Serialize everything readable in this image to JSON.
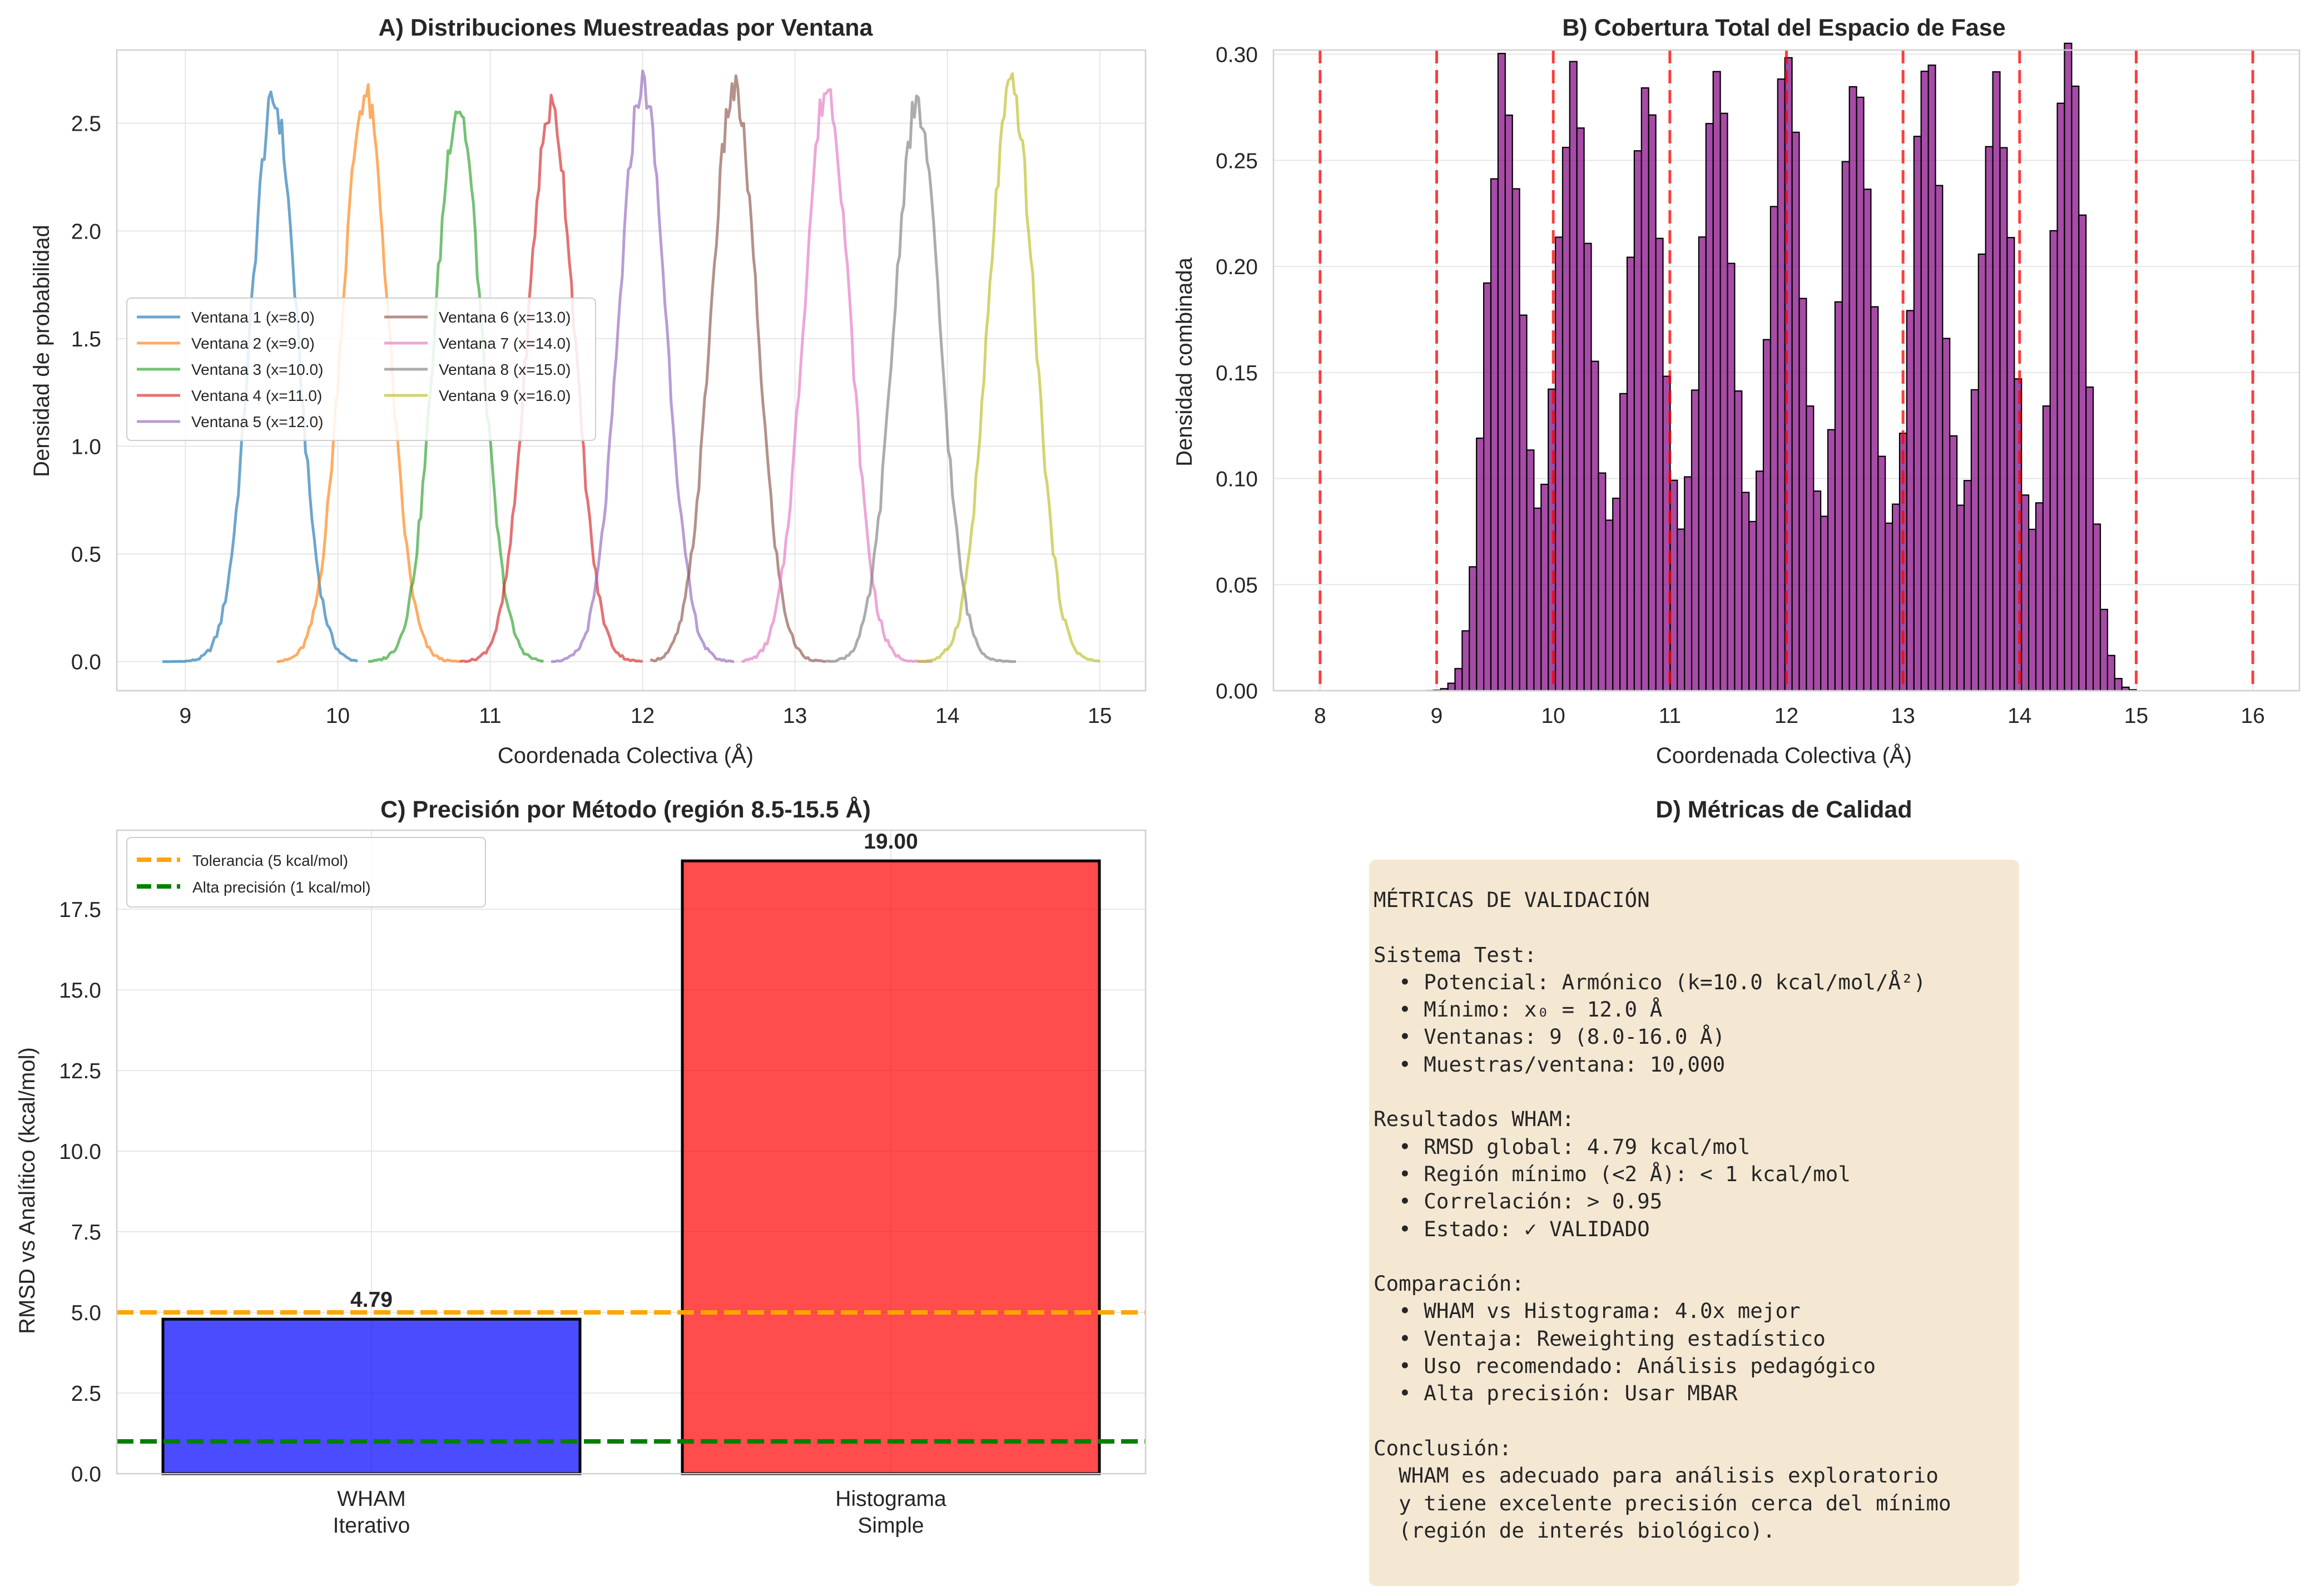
{
  "figure": {
    "panel_a": {
      "title": "A) Distribuciones Muestreadas por Ventana",
      "xlabel": "Coordenada Colectiva (Å)",
      "ylabel": "Densidad de probabilidad"
    },
    "panel_b": {
      "title": "B) Cobertura Total del Espacio de Fase",
      "xlabel": "Coordenada Colectiva (Å)",
      "ylabel": "Densidad combinada"
    },
    "panel_c": {
      "title": "C) Precisión por Método (región 8.5-15.5 Å)",
      "xlabel": "",
      "ylabel": "RMSD vs Analítico (kcal/mol)"
    },
    "panel_d": {
      "title": "D) Métricas de Calidad",
      "text": "MÉTRICAS DE VALIDACIÓN\n\nSistema Test:\n  • Potencial: Armónico (k=10.0 kcal/mol/Å²)\n  • Mínimo: x₀ = 12.0 Å\n  • Ventanas: 9 (8.0-16.0 Å)\n  • Muestras/ventana: 10,000\n\nResultados WHAM:\n  • RMSD global: 4.79 kcal/mol\n  • Región mínimo (<2 Å): < 1 kcal/mol\n  • Correlación: > 0.95\n  • Estado: ✓ VALIDADO\n\nComparación:\n  • WHAM vs Histograma: 4.0x mejor\n  • Ventaja: Reweighting estadístico\n  • Uso recomendado: Análisis pedagógico\n  • Alta precisión: Usar MBAR\n\nConclusión:\n  WHAM es adecuado para análisis exploratorio\n  y tiene excelente precisión cerca del mínimo\n  (región de interés biológico).",
      "box_color": "#f5e8d3"
    }
  },
  "chart_data": [
    {
      "type": "line",
      "title": "A) Distribuciones Muestreadas por Ventana",
      "xlabel": "Coordenada Colectiva (Å)",
      "ylabel": "Densidad de probabilidad",
      "xlim": [
        8.55,
        15.3
      ],
      "ylim": [
        -0.135,
        2.84
      ],
      "xticks": [
        9,
        10,
        11,
        12,
        13,
        14,
        15
      ],
      "yticks": [
        0.0,
        0.5,
        1.0,
        1.5,
        2.0,
        2.5
      ],
      "grid": true,
      "legend_position": "center-left",
      "legend_columns": 2,
      "series": [
        {
          "name": "Ventana 1 (x=8.0)",
          "color": "#1f77b4",
          "center": 9.58,
          "sigma": 0.152,
          "peak": 2.6,
          "xmin": 8.85,
          "xmax": 10.13
        },
        {
          "name": "Ventana 2 (x=9.0)",
          "color": "#ff7f0e",
          "center": 10.18,
          "sigma": 0.152,
          "peak": 2.63,
          "xmin": 9.6,
          "xmax": 10.8
        },
        {
          "name": "Ventana 3 (x=10.0)",
          "color": "#2ca02c",
          "center": 10.79,
          "sigma": 0.152,
          "peak": 2.58,
          "xmin": 10.2,
          "xmax": 11.35
        },
        {
          "name": "Ventana 4 (x=11.0)",
          "color": "#d62728",
          "center": 11.4,
          "sigma": 0.152,
          "peak": 2.57,
          "xmin": 10.8,
          "xmax": 12.0
        },
        {
          "name": "Ventana 5 (x=12.0)",
          "color": "#9467bd",
          "center": 12.0,
          "sigma": 0.152,
          "peak": 2.68,
          "xmin": 11.4,
          "xmax": 12.6
        },
        {
          "name": "Ventana 6 (x=13.0)",
          "color": "#8c564b",
          "center": 12.6,
          "sigma": 0.152,
          "peak": 2.65,
          "xmin": 12.05,
          "xmax": 13.2
        },
        {
          "name": "Ventana 7 (x=14.0)",
          "color": "#e377c2",
          "center": 13.21,
          "sigma": 0.152,
          "peak": 2.66,
          "xmin": 12.65,
          "xmax": 13.9
        },
        {
          "name": "Ventana 8 (x=15.0)",
          "color": "#7f7f7f",
          "center": 13.8,
          "sigma": 0.152,
          "peak": 2.57,
          "xmin": 13.2,
          "xmax": 14.45
        },
        {
          "name": "Ventana 9 (x=16.0)",
          "color": "#bcbd22",
          "center": 14.42,
          "sigma": 0.152,
          "peak": 2.66,
          "xmin": 13.8,
          "xmax": 15.0
        }
      ]
    },
    {
      "type": "bar",
      "title": "B) Cobertura Total del Espacio de Fase",
      "xlabel": "Coordenada Colectiva (Å)",
      "ylabel": "Densidad combinada",
      "xlim": [
        7.6,
        16.4
      ],
      "ylim": [
        0.0,
        0.302
      ],
      "xticks": [
        8,
        9,
        10,
        11,
        12,
        13,
        14,
        15,
        16
      ],
      "yticks": [
        0.0,
        0.05,
        0.1,
        0.15,
        0.2,
        0.25,
        0.3
      ],
      "grid": true,
      "bar_color": "#800080",
      "edge_color": "#000000",
      "bin_range": [
        8.85,
        15.0
      ],
      "bin_count": 100,
      "mixture": {
        "centers": [
          9.58,
          10.18,
          10.79,
          11.4,
          12.0,
          12.6,
          13.21,
          13.8,
          14.42
        ],
        "sigma": 0.152
      },
      "reference_lines": {
        "x": [
          8,
          9,
          10,
          11,
          12,
          13,
          14,
          15,
          16
        ],
        "color": "#ff0000",
        "style": "dashed"
      }
    },
    {
      "type": "bar",
      "title": "C) Precisión por Método (región 8.5-15.5 Å)",
      "xlabel": "",
      "ylabel": "RMSD vs Analítico (kcal/mol)",
      "categories": [
        "WHAM\nIterativo",
        "Histograma\nSimple"
      ],
      "values": [
        4.79,
        19.0
      ],
      "data_labels": [
        "4.79",
        "19.00"
      ],
      "colors": [
        "#0000ff",
        "#ff0000"
      ],
      "ylim": [
        0,
        19.95
      ],
      "yticks": [
        0.0,
        2.5,
        5.0,
        7.5,
        10.0,
        12.5,
        15.0,
        17.5
      ],
      "grid": true,
      "legend_position": "top-left",
      "reference_lines": [
        {
          "name": "Tolerancia (5 kcal/mol)",
          "y": 5,
          "color": "#ffa500",
          "style": "dashed"
        },
        {
          "name": "Alta precisión (1 kcal/mol)",
          "y": 1,
          "color": "#008000",
          "style": "dashed"
        }
      ]
    }
  ]
}
